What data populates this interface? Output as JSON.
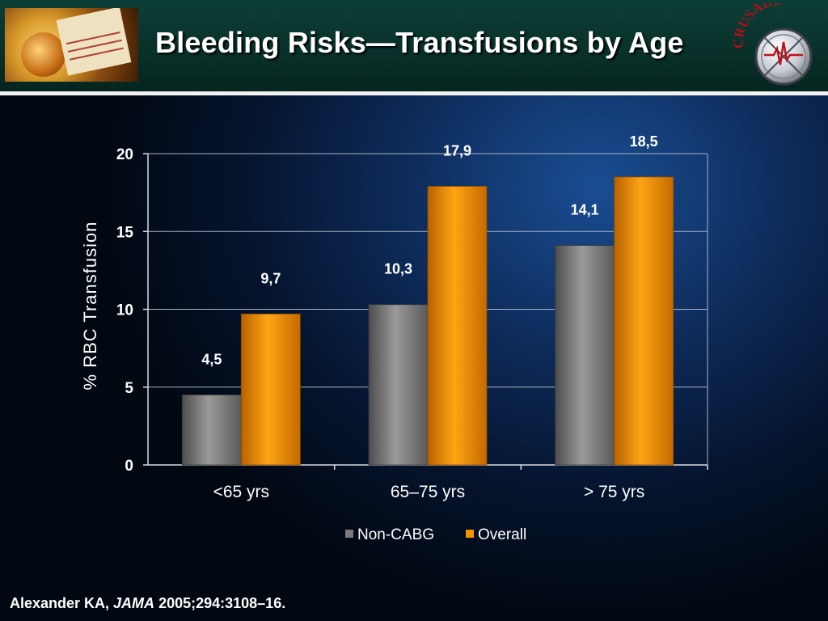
{
  "header": {
    "title": "Bleeding Risks—Transfusions by Age"
  },
  "logo": {
    "text": "CRUSADE",
    "icon": "crusade-heart-swords-emblem"
  },
  "citation": {
    "author": "Alexander KA, ",
    "journal": "JAMA",
    "rest": " 2005;294:3108–16."
  },
  "chart_data": {
    "type": "bar",
    "title": "",
    "xlabel": "",
    "ylabel": "% RBC Transfusion",
    "categories": [
      "<65 yrs",
      "65–75 yrs",
      "> 75 yrs"
    ],
    "ylim": [
      0,
      20
    ],
    "yticks": [
      0,
      5,
      10,
      15,
      20
    ],
    "grid": true,
    "legend_position": "bottom",
    "series": [
      {
        "name": "Non-CABG",
        "values": [
          4.5,
          10.3,
          14.1
        ],
        "labels": [
          "4,5",
          "10,3",
          "14,1"
        ],
        "color": "#7a7a7a"
      },
      {
        "name": "Overall",
        "values": [
          9.7,
          17.9,
          18.5
        ],
        "labels": [
          "9,7",
          "17,9",
          "18,5"
        ],
        "color": "#f39400"
      }
    ]
  }
}
